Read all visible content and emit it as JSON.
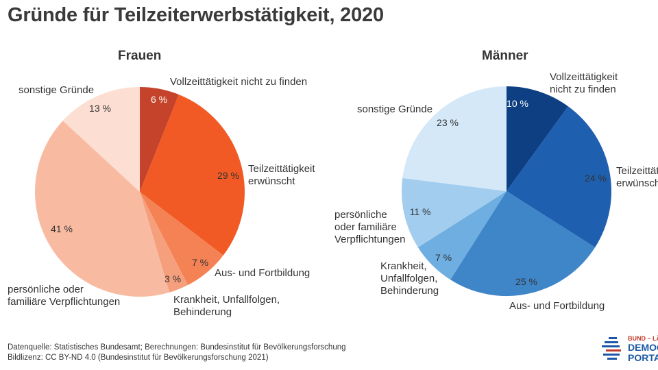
{
  "title": "Gründe für Teilzeiterwerbstätigkeit, 2020",
  "chart_data": [
    {
      "type": "pie",
      "title": "Frauen",
      "unit": "%",
      "start": "12 o'clock",
      "direction": "clockwise",
      "categories": [
        "Vollzeittätigkeit nicht zu finden",
        "Teilzeittätigkeit erwünscht",
        "Aus- und Fortbildung",
        "Krankheit, Unfallfolgen, Behinderung",
        "persönliche oder familiäre Verpflichtungen",
        "sonstige Gründe"
      ],
      "category_lines": [
        [
          "Vollzeittätigkeit nicht zu finden"
        ],
        [
          "Teilzeittätigkeit",
          "erwünscht"
        ],
        [
          "Aus- und Fortbildung"
        ],
        [
          "Krankheit, Unfallfolgen,",
          "Behinderung"
        ],
        [
          "persönliche oder",
          "familiäre Verpflichtungen"
        ],
        [
          "sonstige Gründe"
        ]
      ],
      "values": [
        6,
        29,
        7,
        3,
        41,
        13
      ],
      "value_labels": [
        "6 %",
        "29 %",
        "7 %",
        "3 %",
        "41 %",
        "13 %"
      ],
      "colors": [
        "#c4432a",
        "#f15a24",
        "#f58255",
        "#f69f7c",
        "#f8bba2",
        "#fcded2"
      ]
    },
    {
      "type": "pie",
      "title": "Männer",
      "unit": "%",
      "start": "12 o'clock",
      "direction": "clockwise",
      "categories": [
        "Vollzeittätigkeit nicht zu finden",
        "Teilzeittätigkeit erwünscht",
        "Aus- und Fortbildung",
        "Krankheit, Unfallfolgen, Behinderung",
        "persönliche oder familiäre Verpflichtungen",
        "sonstige Gründe"
      ],
      "category_lines": [
        [
          "Vollzeittätigkeit",
          "nicht zu finden"
        ],
        [
          "Teilzeittätigkeit",
          "erwünscht"
        ],
        [
          "Aus- und Fortbildung"
        ],
        [
          "Krankheit,",
          "Unfallfolgen,",
          "Behinderung"
        ],
        [
          "persönliche",
          "oder familiäre",
          "Verpflichtungen"
        ],
        [
          "sonstige Gründe"
        ]
      ],
      "values": [
        10,
        24,
        25,
        7,
        11,
        23
      ],
      "value_labels": [
        "10 %",
        "24 %",
        "25 %",
        "7 %",
        "11 %",
        "23 %"
      ],
      "colors": [
        "#0d3f82",
        "#1f5fb0",
        "#3f86c9",
        "#6eaee0",
        "#a2cdef",
        "#d5e8f8"
      ]
    }
  ],
  "footer": {
    "source": "Datenquelle: Statistisches Bundesamt; Berechnungen: Bundesinstitut für Bevölkerungsforschung",
    "license": "Bildlizenz: CC BY-ND 4.0 (Bundesinstitut für Bevölkerungsforschung 2021)"
  },
  "logo": {
    "line1": "BUND – LÄNDER",
    "line2": "DEMOGRAFIE",
    "line3": "PORTAL",
    "colors": [
      "#1b57a5",
      "#c0392b"
    ]
  }
}
